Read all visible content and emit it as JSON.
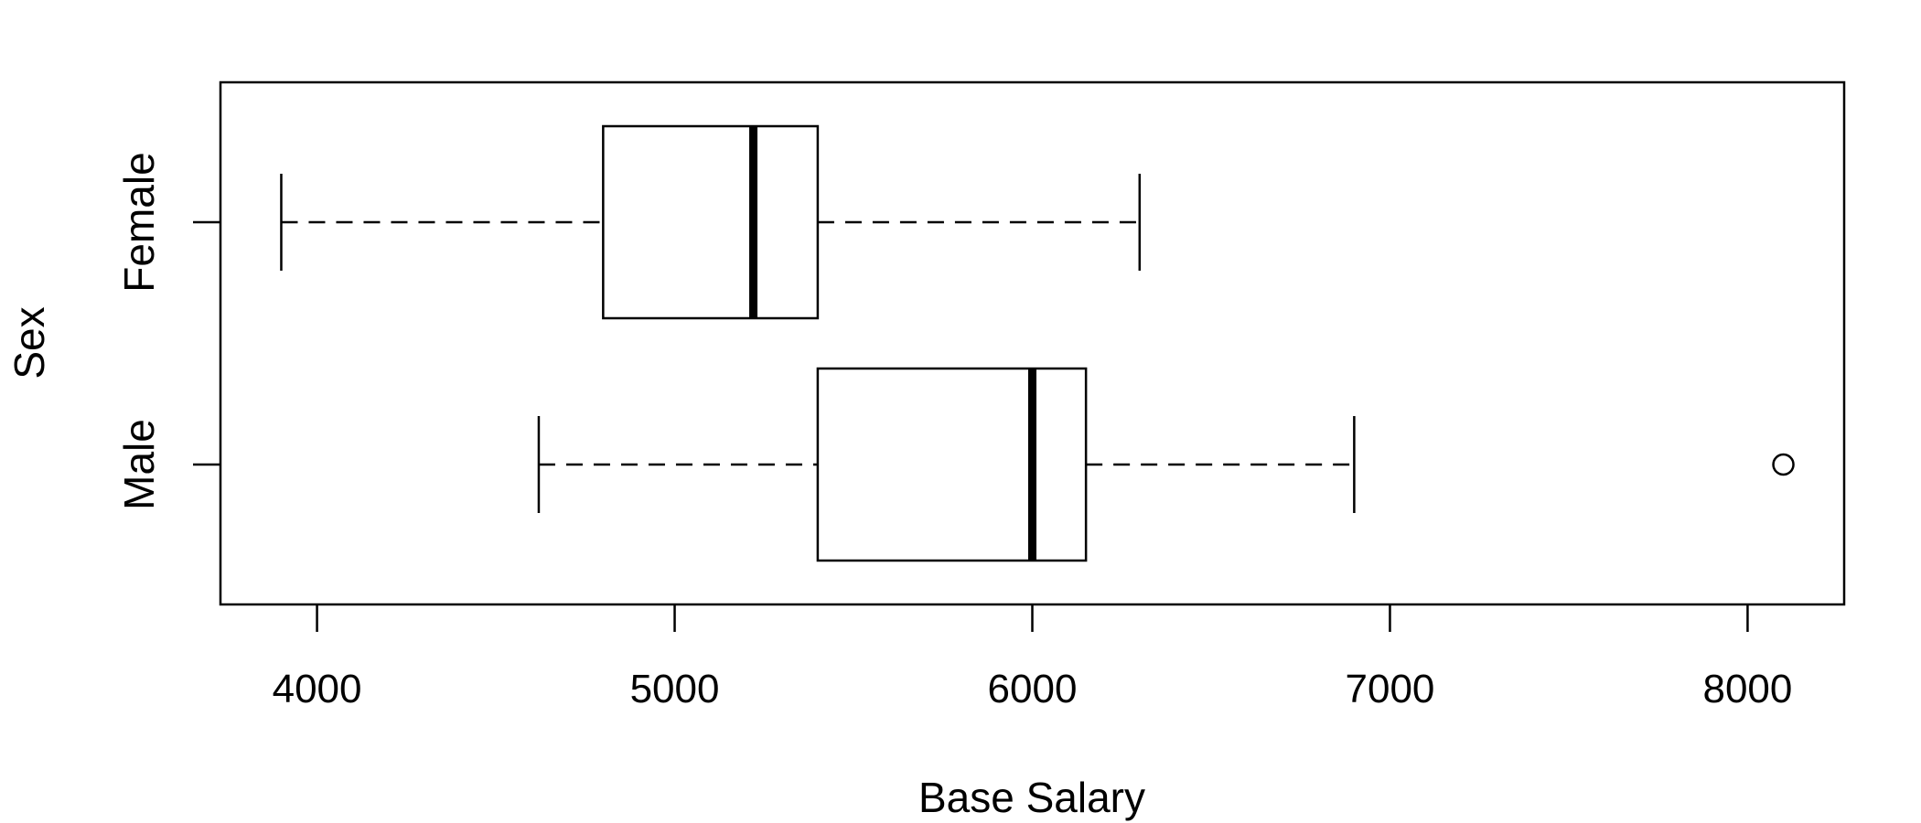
{
  "chart_data": {
    "type": "boxplot",
    "orientation": "horizontal",
    "xlabel": "Base Salary",
    "ylabel": "Sex",
    "xlim": [
      3730,
      8270
    ],
    "x_ticks": [
      4000,
      5000,
      6000,
      7000,
      8000
    ],
    "grid": false,
    "legend": "none",
    "categories": [
      "Female",
      "Male"
    ],
    "boxes": [
      {
        "category": "Female",
        "whisker_low": 3900,
        "q1": 4800,
        "median": 5220,
        "q3": 5400,
        "whisker_high": 6300,
        "outliers": []
      },
      {
        "category": "Male",
        "whisker_low": 4620,
        "q1": 5400,
        "median": 6000,
        "q3": 6150,
        "whisker_high": 6900,
        "outliers": [
          8100
        ]
      }
    ],
    "colors": {
      "stroke": "#000000",
      "box_fill": "#ffffff"
    }
  }
}
